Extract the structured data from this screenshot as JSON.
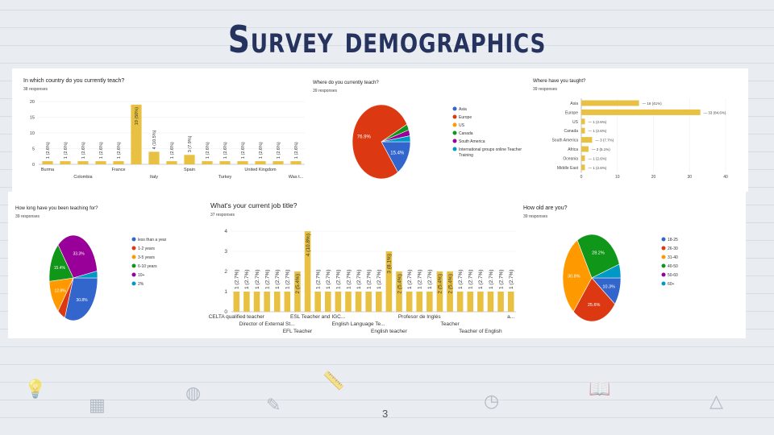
{
  "slide": {
    "title": "Survey demographics",
    "page_number": "3"
  },
  "chart_data": [
    {
      "id": "country",
      "type": "bar",
      "title": "In which country do you currently teach?",
      "subtitle": "38 responses",
      "categories": [
        "Burma",
        "",
        "Colombia",
        "",
        "France",
        "",
        "Italy",
        "",
        "Spain",
        "",
        "Turkey",
        "",
        "United Kingdom",
        "",
        "Was t..."
      ],
      "values": [
        1,
        1,
        1,
        1,
        1,
        19,
        4,
        1,
        3,
        1,
        1,
        1,
        1,
        1,
        1
      ],
      "data_labels": [
        "1 (2.6%)",
        "1 (2.6%)",
        "1 (2.6%)",
        "1 (2.6%)",
        "1 (2.6%)",
        "19 (50%)",
        "4 (10.5%)",
        "1 (2.6%)",
        "3 (7.9%)",
        "1 (2.6%)",
        "1 (2.6%)",
        "1 (2.6%)",
        "1 (2.6%)",
        "1 (2.6%)",
        "1 (2.6%)"
      ],
      "ylim": [
        0,
        20
      ],
      "yticks": [
        "0",
        "5",
        "10",
        "15",
        "20"
      ],
      "color": "#e8c042"
    },
    {
      "id": "region",
      "type": "pie",
      "title": "Where do you currently teach?",
      "subtitle": "39 responses",
      "labels": [
        "Asia",
        "Europe",
        "US",
        "Canada",
        "South America",
        "International groups online Teacher Training"
      ],
      "values": [
        15.4,
        76.9,
        0,
        2.6,
        2.6,
        2.6
      ],
      "slice_labels": [
        "15.4%",
        "76.9%",
        "",
        "",
        "",
        ""
      ],
      "colors": [
        "#3366cc",
        "#dc3912",
        "#ff9900",
        "#109618",
        "#990099",
        "#0099c6"
      ]
    },
    {
      "id": "taught",
      "type": "bar",
      "orientation": "horizontal",
      "title": "Where have you taught?",
      "subtitle": "39 responses",
      "categories": [
        "Asia",
        "Europe",
        "US",
        "Canada",
        "South America",
        "Africa",
        "Oceania",
        "Middle East"
      ],
      "values": [
        16,
        33,
        1,
        1,
        3,
        2,
        1,
        1
      ],
      "data_labels": [
        "16 (41%)",
        "33 (84.6%)",
        "1 (2.6%)",
        "1 (2.6%)",
        "3 (7.7%)",
        "2 (5.1%)",
        "1 (2.6%)",
        "1 (2.6%)"
      ],
      "xlim": [
        0,
        40
      ],
      "xticks": [
        "0",
        "10",
        "20",
        "30",
        "40"
      ],
      "color": "#e8c042"
    },
    {
      "id": "experience",
      "type": "pie",
      "title": "How long have you been teaching for?",
      "subtitle": "39 responses",
      "labels": [
        "less than a year",
        "1-2 years",
        "3-5 years",
        "6-10 years",
        "10+",
        "2%"
      ],
      "values": [
        30.8,
        5.1,
        12.8,
        15.4,
        33.3,
        2.6
      ],
      "slice_labels": [
        "30.8%",
        "",
        "12.8%",
        "15.4%",
        "33.3%",
        ""
      ],
      "colors": [
        "#3366cc",
        "#dc3912",
        "#ff9900",
        "#109618",
        "#990099",
        "#0099c6"
      ]
    },
    {
      "id": "job",
      "type": "bar",
      "title": "What's your current job title?",
      "subtitle": "37 responses",
      "categories": [
        "CELTA qualified teacher",
        "",
        "",
        "Director of External St...",
        "",
        "",
        "EFL Teacher",
        "",
        "ESL Teacher and IGC...",
        "",
        "",
        "",
        "English Language Te...",
        "",
        "",
        "English teacher",
        "",
        "",
        "Profesor de Inglés",
        "",
        "",
        "Teacher",
        "",
        "",
        "Teacher of English",
        "",
        "",
        "a..."
      ],
      "values": [
        1,
        1,
        1,
        1,
        1,
        1,
        2,
        4,
        1,
        1,
        1,
        1,
        1,
        1,
        1,
        3,
        2,
        1,
        1,
        1,
        2,
        2,
        1,
        1,
        1,
        1,
        1,
        1
      ],
      "data_labels": [
        "1 (2.7%)",
        "1 (2.7%)",
        "1 (2.7%)",
        "1 (2.7%)",
        "1 (2.7%)",
        "1 (2.7%)",
        "2 (5.4%)",
        "4 (10.8%)",
        "1 (2.7%)",
        "1 (2.7%)",
        "1 (2.7%)",
        "1 (2.7%)",
        "1 (2.7%)",
        "1 (2.7%)",
        "1 (2.7%)",
        "3 (8.1%)",
        "2 (5.4%)",
        "1 (2.7%)",
        "1 (2.7%)",
        "1 (2.7%)",
        "2 (5.4%)",
        "2 (5.4%)",
        "1 (2.7%)",
        "1 (2.7%)",
        "1 (2.7%)",
        "1 (2.7%)",
        "1 (2.7%)",
        "1 (2.7%)"
      ],
      "ylim": [
        0,
        4
      ],
      "yticks": [
        "0",
        "1",
        "2",
        "3",
        "4"
      ],
      "color": "#e8c042"
    },
    {
      "id": "age",
      "type": "pie",
      "title": "How old are you?",
      "subtitle": "39 responses",
      "labels": [
        "18-25",
        "26-30",
        "31-40",
        "40-50",
        "50-60",
        "60+"
      ],
      "values": [
        10.3,
        25.6,
        30.8,
        28.2,
        0,
        5.1
      ],
      "slice_labels": [
        "10.3%",
        "25.6%",
        "30.8%",
        "28.2%",
        "",
        ""
      ],
      "colors": [
        "#3366cc",
        "#dc3912",
        "#ff9900",
        "#109618",
        "#990099",
        "#0099c6"
      ]
    }
  ]
}
